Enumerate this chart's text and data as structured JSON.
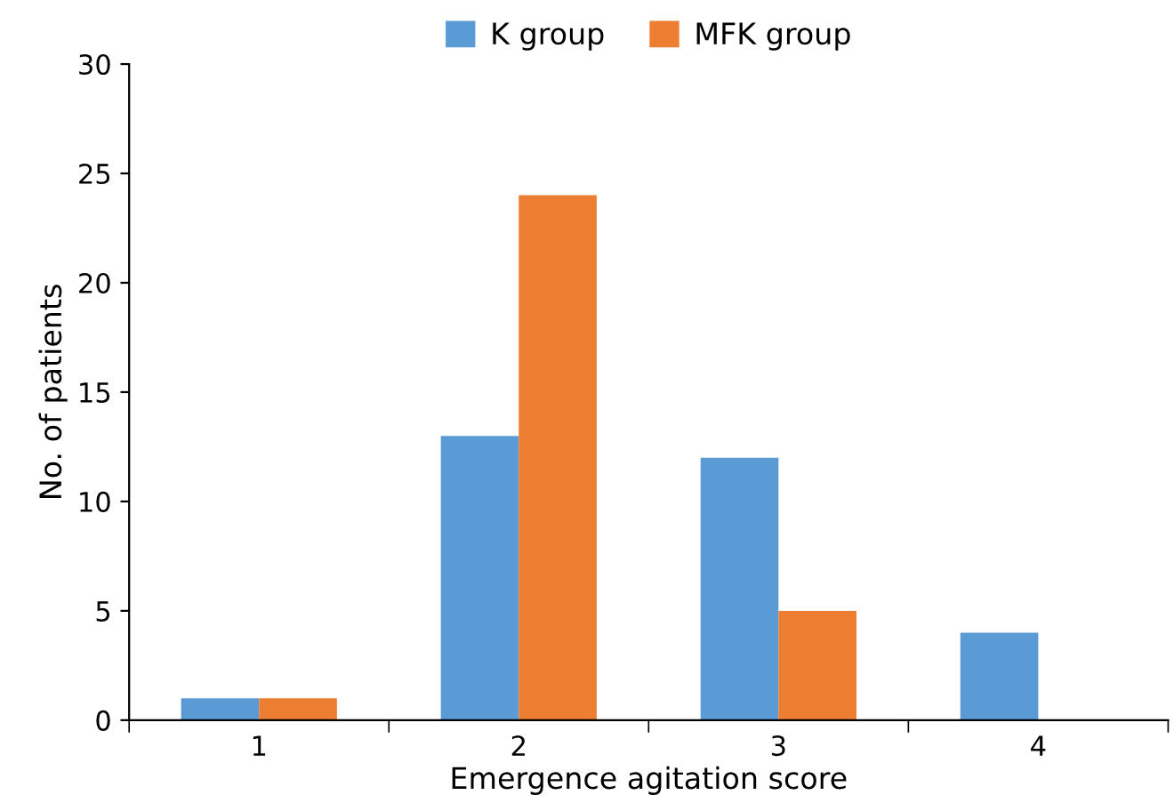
{
  "chart_data": {
    "type": "bar",
    "xlabel": "Emergence agitation score",
    "ylabel": "No. of patients",
    "categories": [
      "1",
      "2",
      "3",
      "4"
    ],
    "series": [
      {
        "name": "K group",
        "color": "#5b9bd5",
        "values": [
          1,
          13,
          12,
          4
        ]
      },
      {
        "name": "MFK group",
        "color": "#ed7d31",
        "values": [
          1,
          24,
          5,
          0
        ]
      }
    ],
    "ylim": [
      0,
      30
    ],
    "yticks": [
      0,
      5,
      10,
      15,
      20,
      25,
      30
    ],
    "grid": false,
    "legend": "top"
  }
}
